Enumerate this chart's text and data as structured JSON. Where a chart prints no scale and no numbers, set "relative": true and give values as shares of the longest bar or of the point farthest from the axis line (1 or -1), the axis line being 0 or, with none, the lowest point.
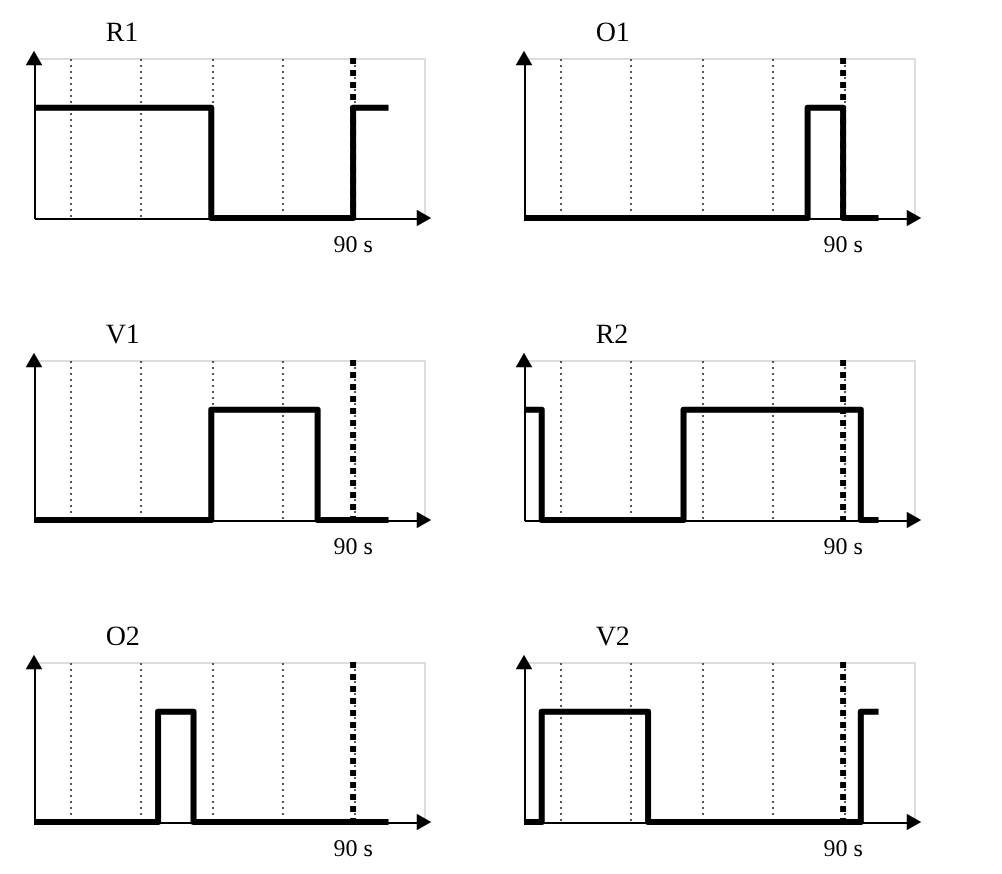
{
  "chart_data": [
    {
      "type": "step",
      "relative": true,
      "title": "R1",
      "categories": [
        null,
        null,
        null,
        null,
        null,
        null,
        null,
        null,
        null,
        null,
        null,
        null,
        null,
        null,
        null,
        null,
        null,
        null,
        null,
        null,
        null
      ],
      "values": [
        1,
        1,
        1,
        1,
        1,
        1,
        1,
        1,
        1,
        1,
        0,
        0,
        0,
        0,
        0,
        0,
        0,
        0,
        1,
        1,
        1
      ],
      "color": "#000000",
      "line_style": "solid",
      "grid": "x",
      "annotations": [
        "90 s"
      ]
    },
    {
      "type": "step",
      "relative": true,
      "title": "O1",
      "categories": [
        null,
        null,
        null,
        null,
        null,
        null,
        null,
        null,
        null,
        null,
        null,
        null,
        null,
        null,
        null,
        null,
        null,
        null,
        null,
        null,
        null
      ],
      "values": [
        0,
        0,
        0,
        0,
        0,
        0,
        0,
        0,
        0,
        0,
        0,
        0,
        0,
        0,
        0,
        0,
        1,
        1,
        0,
        0,
        0
      ],
      "color": "#000000",
      "line_style": "solid",
      "grid": "x",
      "annotations": [
        "90 s"
      ]
    },
    {
      "type": "step",
      "relative": true,
      "title": "V1",
      "categories": [
        null,
        null,
        null,
        null,
        null,
        null,
        null,
        null,
        null,
        null,
        null,
        null,
        null,
        null,
        null,
        null,
        null,
        null,
        null,
        null,
        null
      ],
      "values": [
        0,
        0,
        0,
        0,
        0,
        0,
        0,
        0,
        0,
        0,
        1,
        1,
        1,
        1,
        1,
        1,
        0,
        0,
        0,
        0,
        0
      ],
      "color": "#000000",
      "line_style": "solid",
      "grid": "x",
      "annotations": [
        "90 s"
      ]
    },
    {
      "type": "step",
      "relative": true,
      "title": "R2",
      "categories": [
        null,
        null,
        null,
        null,
        null,
        null,
        null,
        null,
        null,
        null,
        null,
        null,
        null,
        null,
        null,
        null,
        null,
        null,
        null,
        null,
        null
      ],
      "values": [
        1,
        0,
        0,
        0,
        0,
        0,
        0,
        0,
        0,
        1,
        1,
        1,
        1,
        1,
        1,
        1,
        1,
        1,
        1,
        0,
        0
      ],
      "color": "#000000",
      "line_style": "solid",
      "grid": "x",
      "annotations": [
        "90 s"
      ]
    },
    {
      "type": "step",
      "relative": true,
      "title": "O2",
      "categories": [
        null,
        null,
        null,
        null,
        null,
        null,
        null,
        null,
        null,
        null,
        null,
        null,
        null,
        null,
        null,
        null,
        null,
        null,
        null,
        null,
        null
      ],
      "values": [
        0,
        0,
        0,
        0,
        0,
        0,
        0,
        1,
        1,
        0,
        0,
        0,
        0,
        0,
        0,
        0,
        0,
        0,
        0,
        0,
        0
      ],
      "color": "#000000",
      "line_style": "solid",
      "grid": "x",
      "annotations": [
        "90 s"
      ]
    },
    {
      "type": "step",
      "relative": true,
      "title": "V2",
      "categories": [
        null,
        null,
        null,
        null,
        null,
        null,
        null,
        null,
        null,
        null,
        null,
        null,
        null,
        null,
        null,
        null,
        null,
        null,
        null,
        null,
        null
      ],
      "values": [
        0,
        1,
        1,
        1,
        1,
        1,
        1,
        0,
        0,
        0,
        0,
        0,
        0,
        0,
        0,
        0,
        0,
        0,
        0,
        1,
        1
      ],
      "color": "#000000",
      "line_style": "solid",
      "grid": "x",
      "annotations": [
        "90 s"
      ]
    }
  ]
}
